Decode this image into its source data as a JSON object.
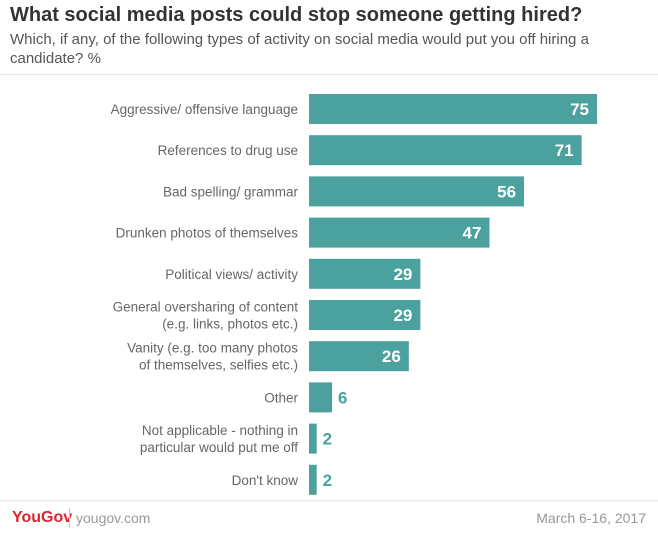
{
  "header": {
    "title": "What social media posts could stop someone getting hired?",
    "subtitle": "Which, if any, of the following types of activity on social media would put you off hiring a candidate? %"
  },
  "footer": {
    "logo": "YouGov",
    "site": "yougov.com",
    "date": "March 6-16, 2017"
  },
  "colors": {
    "bar": "#4aa19d",
    "brand": "#d8262e"
  },
  "chart_data": {
    "type": "bar",
    "orientation": "horizontal",
    "categories": [
      [
        "Aggressive/ offensive language"
      ],
      [
        "References to drug use"
      ],
      [
        "Bad spelling/ grammar"
      ],
      [
        "Drunken photos of themselves"
      ],
      [
        "Political views/ activity"
      ],
      [
        "General oversharing of content",
        "(e.g. links, photos etc.)"
      ],
      [
        "Vanity (e.g. too many photos",
        "of themselves, selfies etc.)"
      ],
      [
        "Other"
      ],
      [
        "Not applicable - nothing in",
        "particular would put me off"
      ],
      [
        "Don't know"
      ]
    ],
    "values": [
      75,
      71,
      56,
      47,
      29,
      29,
      26,
      6,
      2,
      2
    ],
    "xlim": [
      0,
      75
    ],
    "grid": false,
    "legend": "none"
  }
}
